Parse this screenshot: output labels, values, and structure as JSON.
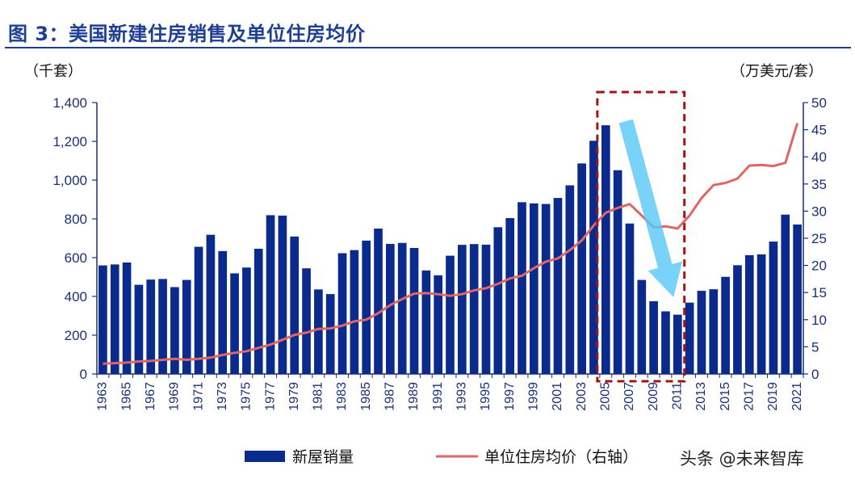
{
  "figure": {
    "title": "图 3：美国新建住房销售及单位住房均价",
    "watermark": "头条 @未来智库"
  },
  "chart_data": {
    "type": "bar+line",
    "title": "图 3：美国新建住房销售及单位住房均价",
    "y_left_unit": "（千套）",
    "y_right_unit": "（万美元/套）",
    "y_left_lim": [
      0,
      1400
    ],
    "y_left_ticks": [
      "0",
      "200",
      "400",
      "600",
      "800",
      "1,000",
      "1,200",
      "1,400"
    ],
    "y_right_lim": [
      0,
      50
    ],
    "y_right_ticks": [
      "0",
      "5",
      "10",
      "15",
      "20",
      "25",
      "30",
      "35",
      "40",
      "45",
      "50"
    ],
    "x": [
      1963,
      1964,
      1965,
      1966,
      1967,
      1968,
      1969,
      1970,
      1971,
      1972,
      1973,
      1974,
      1975,
      1976,
      1977,
      1978,
      1979,
      1980,
      1981,
      1982,
      1983,
      1984,
      1985,
      1986,
      1987,
      1988,
      1989,
      1990,
      1991,
      1992,
      1993,
      1994,
      1995,
      1996,
      1997,
      1998,
      1999,
      2000,
      2001,
      2002,
      2003,
      2004,
      2005,
      2006,
      2007,
      2008,
      2009,
      2010,
      2011,
      2012,
      2013,
      2014,
      2015,
      2016,
      2017,
      2018,
      2019,
      2020,
      2021
    ],
    "x_tick_labels": [
      "1963",
      "1965",
      "1967",
      "1969",
      "1971",
      "1973",
      "1975",
      "1977",
      "1979",
      "1981",
      "1983",
      "1985",
      "1987",
      "1989",
      "1991",
      "1993",
      "1995",
      "1997",
      "1999",
      "2001",
      "2003",
      "2005",
      "2007",
      "2009",
      "2011",
      "2013",
      "2015",
      "2017",
      "2019",
      "2021"
    ],
    "series": [
      {
        "name": "新屋销量",
        "axis": "left",
        "kind": "bar",
        "color": "#0a2a8c",
        "values": [
          560,
          565,
          575,
          460,
          487,
          490,
          448,
          485,
          656,
          718,
          634,
          519,
          549,
          646,
          819,
          817,
          709,
          545,
          436,
          412,
          623,
          639,
          688,
          750,
          671,
          676,
          650,
          534,
          509,
          610,
          666,
          670,
          667,
          757,
          804,
          886,
          880,
          877,
          908,
          973,
          1086,
          1203,
          1283,
          1051,
          776,
          485,
          375,
          323,
          306,
          368,
          429,
          437,
          501,
          561,
          613,
          617,
          683,
          822,
          771
        ]
      },
      {
        "name": "单位住房均价（右轴）",
        "axis": "right",
        "kind": "line",
        "color": "#e06666",
        "values": [
          1.9,
          2.0,
          2.1,
          2.3,
          2.4,
          2.6,
          2.8,
          2.6,
          2.8,
          3.0,
          3.5,
          3.9,
          4.2,
          4.8,
          5.4,
          6.3,
          7.2,
          7.6,
          8.3,
          8.4,
          8.9,
          9.7,
          10.0,
          11.2,
          12.7,
          13.8,
          14.8,
          14.9,
          14.7,
          14.4,
          14.7,
          15.4,
          15.8,
          16.6,
          17.6,
          18.1,
          19.5,
          20.7,
          21.3,
          22.8,
          24.6,
          27.4,
          29.7,
          30.6,
          31.3,
          29.2,
          27.0,
          27.2,
          26.8,
          29.2,
          32.4,
          34.8,
          35.2,
          36.0,
          38.4,
          38.5,
          38.3,
          38.9,
          46.2
        ]
      }
    ],
    "annotations": [
      "dashed-box-2005-2011",
      "downward-arrow-2005-2011"
    ]
  }
}
